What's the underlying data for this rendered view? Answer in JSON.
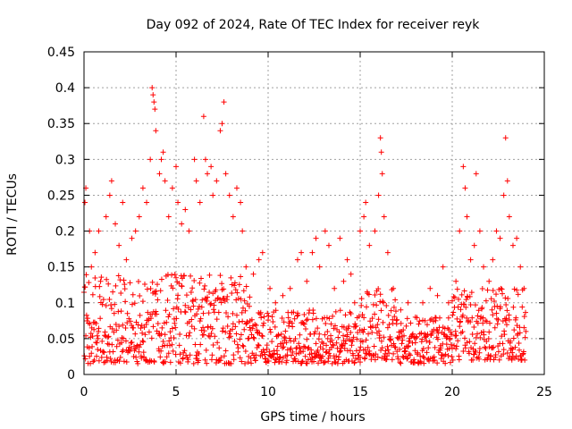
{
  "chart_data": {
    "type": "scatter",
    "title": "Day 092 of 2024, Rate Of TEC Index for receiver reyk",
    "xlabel": "GPS time / hours",
    "ylabel": "ROTI / TECUs",
    "xlim": [
      0,
      25
    ],
    "ylim": [
      0,
      0.45
    ],
    "xticks": [
      0,
      5,
      10,
      15,
      20,
      25
    ],
    "xtick_labels": [
      "0",
      "5",
      "10",
      "15",
      "20",
      "25"
    ],
    "yticks": [
      0,
      0.05,
      0.1,
      0.15,
      0.2,
      0.25,
      0.3,
      0.35,
      0.4,
      0.45
    ],
    "ytick_labels": [
      "0",
      "0.05",
      "0.1",
      "0.15",
      "0.2",
      "0.25",
      "0.3",
      "0.35",
      "0.4",
      "0.45"
    ],
    "grid": true,
    "marker": "+",
    "color": "#ff0000",
    "series": [
      {
        "name": "ROTI",
        "points": [
          [
            0.05,
            0.24
          ],
          [
            0.1,
            0.26
          ],
          [
            0.3,
            0.2
          ],
          [
            0.4,
            0.15
          ],
          [
            0.6,
            0.17
          ],
          [
            0.8,
            0.2
          ],
          [
            0.9,
            0.13
          ],
          [
            1.2,
            0.22
          ],
          [
            1.4,
            0.25
          ],
          [
            1.5,
            0.27
          ],
          [
            1.7,
            0.21
          ],
          [
            1.9,
            0.18
          ],
          [
            2.1,
            0.24
          ],
          [
            2.3,
            0.16
          ],
          [
            2.6,
            0.19
          ],
          [
            2.8,
            0.2
          ],
          [
            3.0,
            0.22
          ],
          [
            3.2,
            0.26
          ],
          [
            3.4,
            0.24
          ],
          [
            3.6,
            0.3
          ],
          [
            3.7,
            0.4
          ],
          [
            3.75,
            0.39
          ],
          [
            3.8,
            0.38
          ],
          [
            3.85,
            0.37
          ],
          [
            3.9,
            0.34
          ],
          [
            4.1,
            0.28
          ],
          [
            4.2,
            0.3
          ],
          [
            4.3,
            0.31
          ],
          [
            4.4,
            0.27
          ],
          [
            4.6,
            0.22
          ],
          [
            4.8,
            0.26
          ],
          [
            5.0,
            0.29
          ],
          [
            5.1,
            0.24
          ],
          [
            5.3,
            0.21
          ],
          [
            5.5,
            0.23
          ],
          [
            5.7,
            0.2
          ],
          [
            6.0,
            0.3
          ],
          [
            6.1,
            0.27
          ],
          [
            6.3,
            0.24
          ],
          [
            6.5,
            0.36
          ],
          [
            6.6,
            0.3
          ],
          [
            6.7,
            0.28
          ],
          [
            6.9,
            0.29
          ],
          [
            7.0,
            0.25
          ],
          [
            7.2,
            0.27
          ],
          [
            7.4,
            0.34
          ],
          [
            7.5,
            0.35
          ],
          [
            7.6,
            0.38
          ],
          [
            7.7,
            0.28
          ],
          [
            7.9,
            0.25
          ],
          [
            8.1,
            0.22
          ],
          [
            8.3,
            0.26
          ],
          [
            8.5,
            0.24
          ],
          [
            8.6,
            0.2
          ],
          [
            8.8,
            0.15
          ],
          [
            9.2,
            0.14
          ],
          [
            9.5,
            0.16
          ],
          [
            9.7,
            0.17
          ],
          [
            10.1,
            0.12
          ],
          [
            10.4,
            0.1
          ],
          [
            10.8,
            0.11
          ],
          [
            11.2,
            0.12
          ],
          [
            11.6,
            0.16
          ],
          [
            11.8,
            0.17
          ],
          [
            12.1,
            0.13
          ],
          [
            12.4,
            0.17
          ],
          [
            12.6,
            0.19
          ],
          [
            12.8,
            0.15
          ],
          [
            13.1,
            0.2
          ],
          [
            13.3,
            0.18
          ],
          [
            13.6,
            0.12
          ],
          [
            13.9,
            0.19
          ],
          [
            14.1,
            0.13
          ],
          [
            14.3,
            0.16
          ],
          [
            14.5,
            0.14
          ],
          [
            14.7,
            0.1
          ],
          [
            15.0,
            0.2
          ],
          [
            15.2,
            0.22
          ],
          [
            15.3,
            0.24
          ],
          [
            15.5,
            0.18
          ],
          [
            15.8,
            0.2
          ],
          [
            16.0,
            0.25
          ],
          [
            16.1,
            0.33
          ],
          [
            16.15,
            0.31
          ],
          [
            16.2,
            0.28
          ],
          [
            16.3,
            0.22
          ],
          [
            16.5,
            0.17
          ],
          [
            16.8,
            0.12
          ],
          [
            17.2,
            0.09
          ],
          [
            17.6,
            0.1
          ],
          [
            18.0,
            0.08
          ],
          [
            18.4,
            0.1
          ],
          [
            18.8,
            0.12
          ],
          [
            19.2,
            0.11
          ],
          [
            19.5,
            0.15
          ],
          [
            19.8,
            0.1
          ],
          [
            20.2,
            0.13
          ],
          [
            20.4,
            0.2
          ],
          [
            20.6,
            0.29
          ],
          [
            20.7,
            0.26
          ],
          [
            20.8,
            0.22
          ],
          [
            21.0,
            0.16
          ],
          [
            21.2,
            0.18
          ],
          [
            21.3,
            0.28
          ],
          [
            21.5,
            0.2
          ],
          [
            21.7,
            0.15
          ],
          [
            22.0,
            0.13
          ],
          [
            22.2,
            0.16
          ],
          [
            22.4,
            0.2
          ],
          [
            22.6,
            0.19
          ],
          [
            22.8,
            0.25
          ],
          [
            22.9,
            0.33
          ],
          [
            23.0,
            0.27
          ],
          [
            23.1,
            0.22
          ],
          [
            23.3,
            0.18
          ],
          [
            23.5,
            0.19
          ],
          [
            23.7,
            0.15
          ],
          [
            23.9,
            0.12
          ]
        ]
      }
    ],
    "baseline": {
      "x_step": 0.02,
      "segments": [
        {
          "from": 0,
          "to": 9,
          "low": 0.015,
          "high": 0.14
        },
        {
          "from": 9,
          "to": 15,
          "low": 0.015,
          "high": 0.09
        },
        {
          "from": 15,
          "to": 17,
          "low": 0.02,
          "high": 0.12
        },
        {
          "from": 17,
          "to": 20,
          "low": 0.015,
          "high": 0.08
        },
        {
          "from": 20,
          "to": 24,
          "low": 0.02,
          "high": 0.12
        }
      ]
    }
  }
}
